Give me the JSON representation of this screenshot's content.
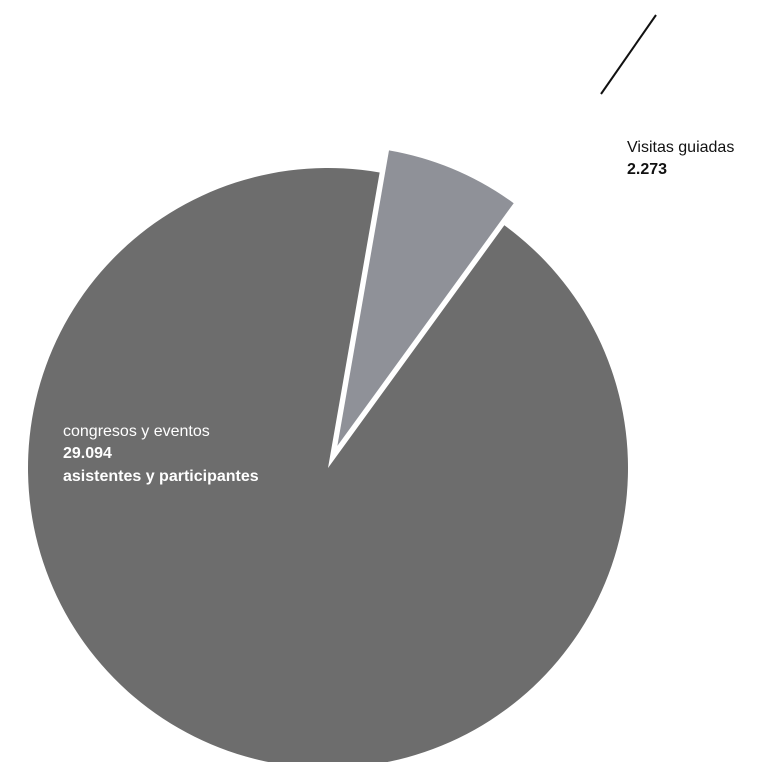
{
  "chart_data": {
    "type": "pie",
    "title": "",
    "slices": [
      {
        "label": "congresos y eventos",
        "value": 29094,
        "value_label": "29.094",
        "detail": "asistentes y participantes",
        "color": "#6d6d6d",
        "exploded": false
      },
      {
        "label": "Visitas guiadas",
        "value": 2273,
        "value_label": "2.273",
        "detail": "",
        "color": "#8f9198",
        "exploded": true
      }
    ],
    "legend": "none",
    "label_text_colors": {
      "inside": "#ffffff",
      "outside": "#111111"
    },
    "leader_line_color": "#111111"
  }
}
